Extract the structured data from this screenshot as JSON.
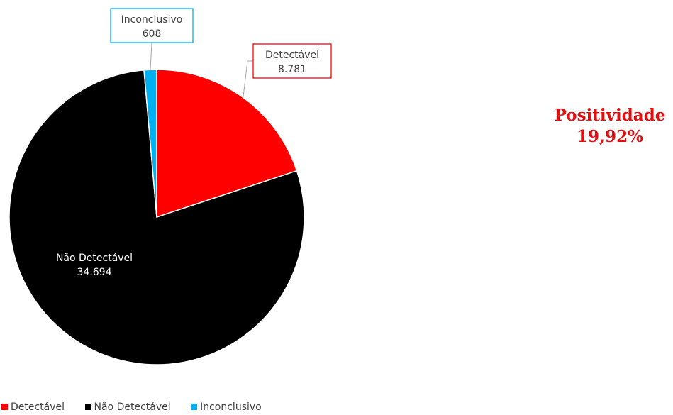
{
  "chart_data": {
    "type": "pie",
    "categories": [
      "Detectável",
      "Não Detectável",
      "Inconclusivo"
    ],
    "values": [
      8781,
      34694,
      608
    ],
    "value_labels": [
      "8.781",
      "34.694",
      "608"
    ],
    "colors": [
      "#ff0000",
      "#000000",
      "#00b0f0"
    ],
    "legend": "bottom-left"
  },
  "annotation": {
    "label": "Positividade",
    "value": "19,92%",
    "color": "#e01010"
  }
}
